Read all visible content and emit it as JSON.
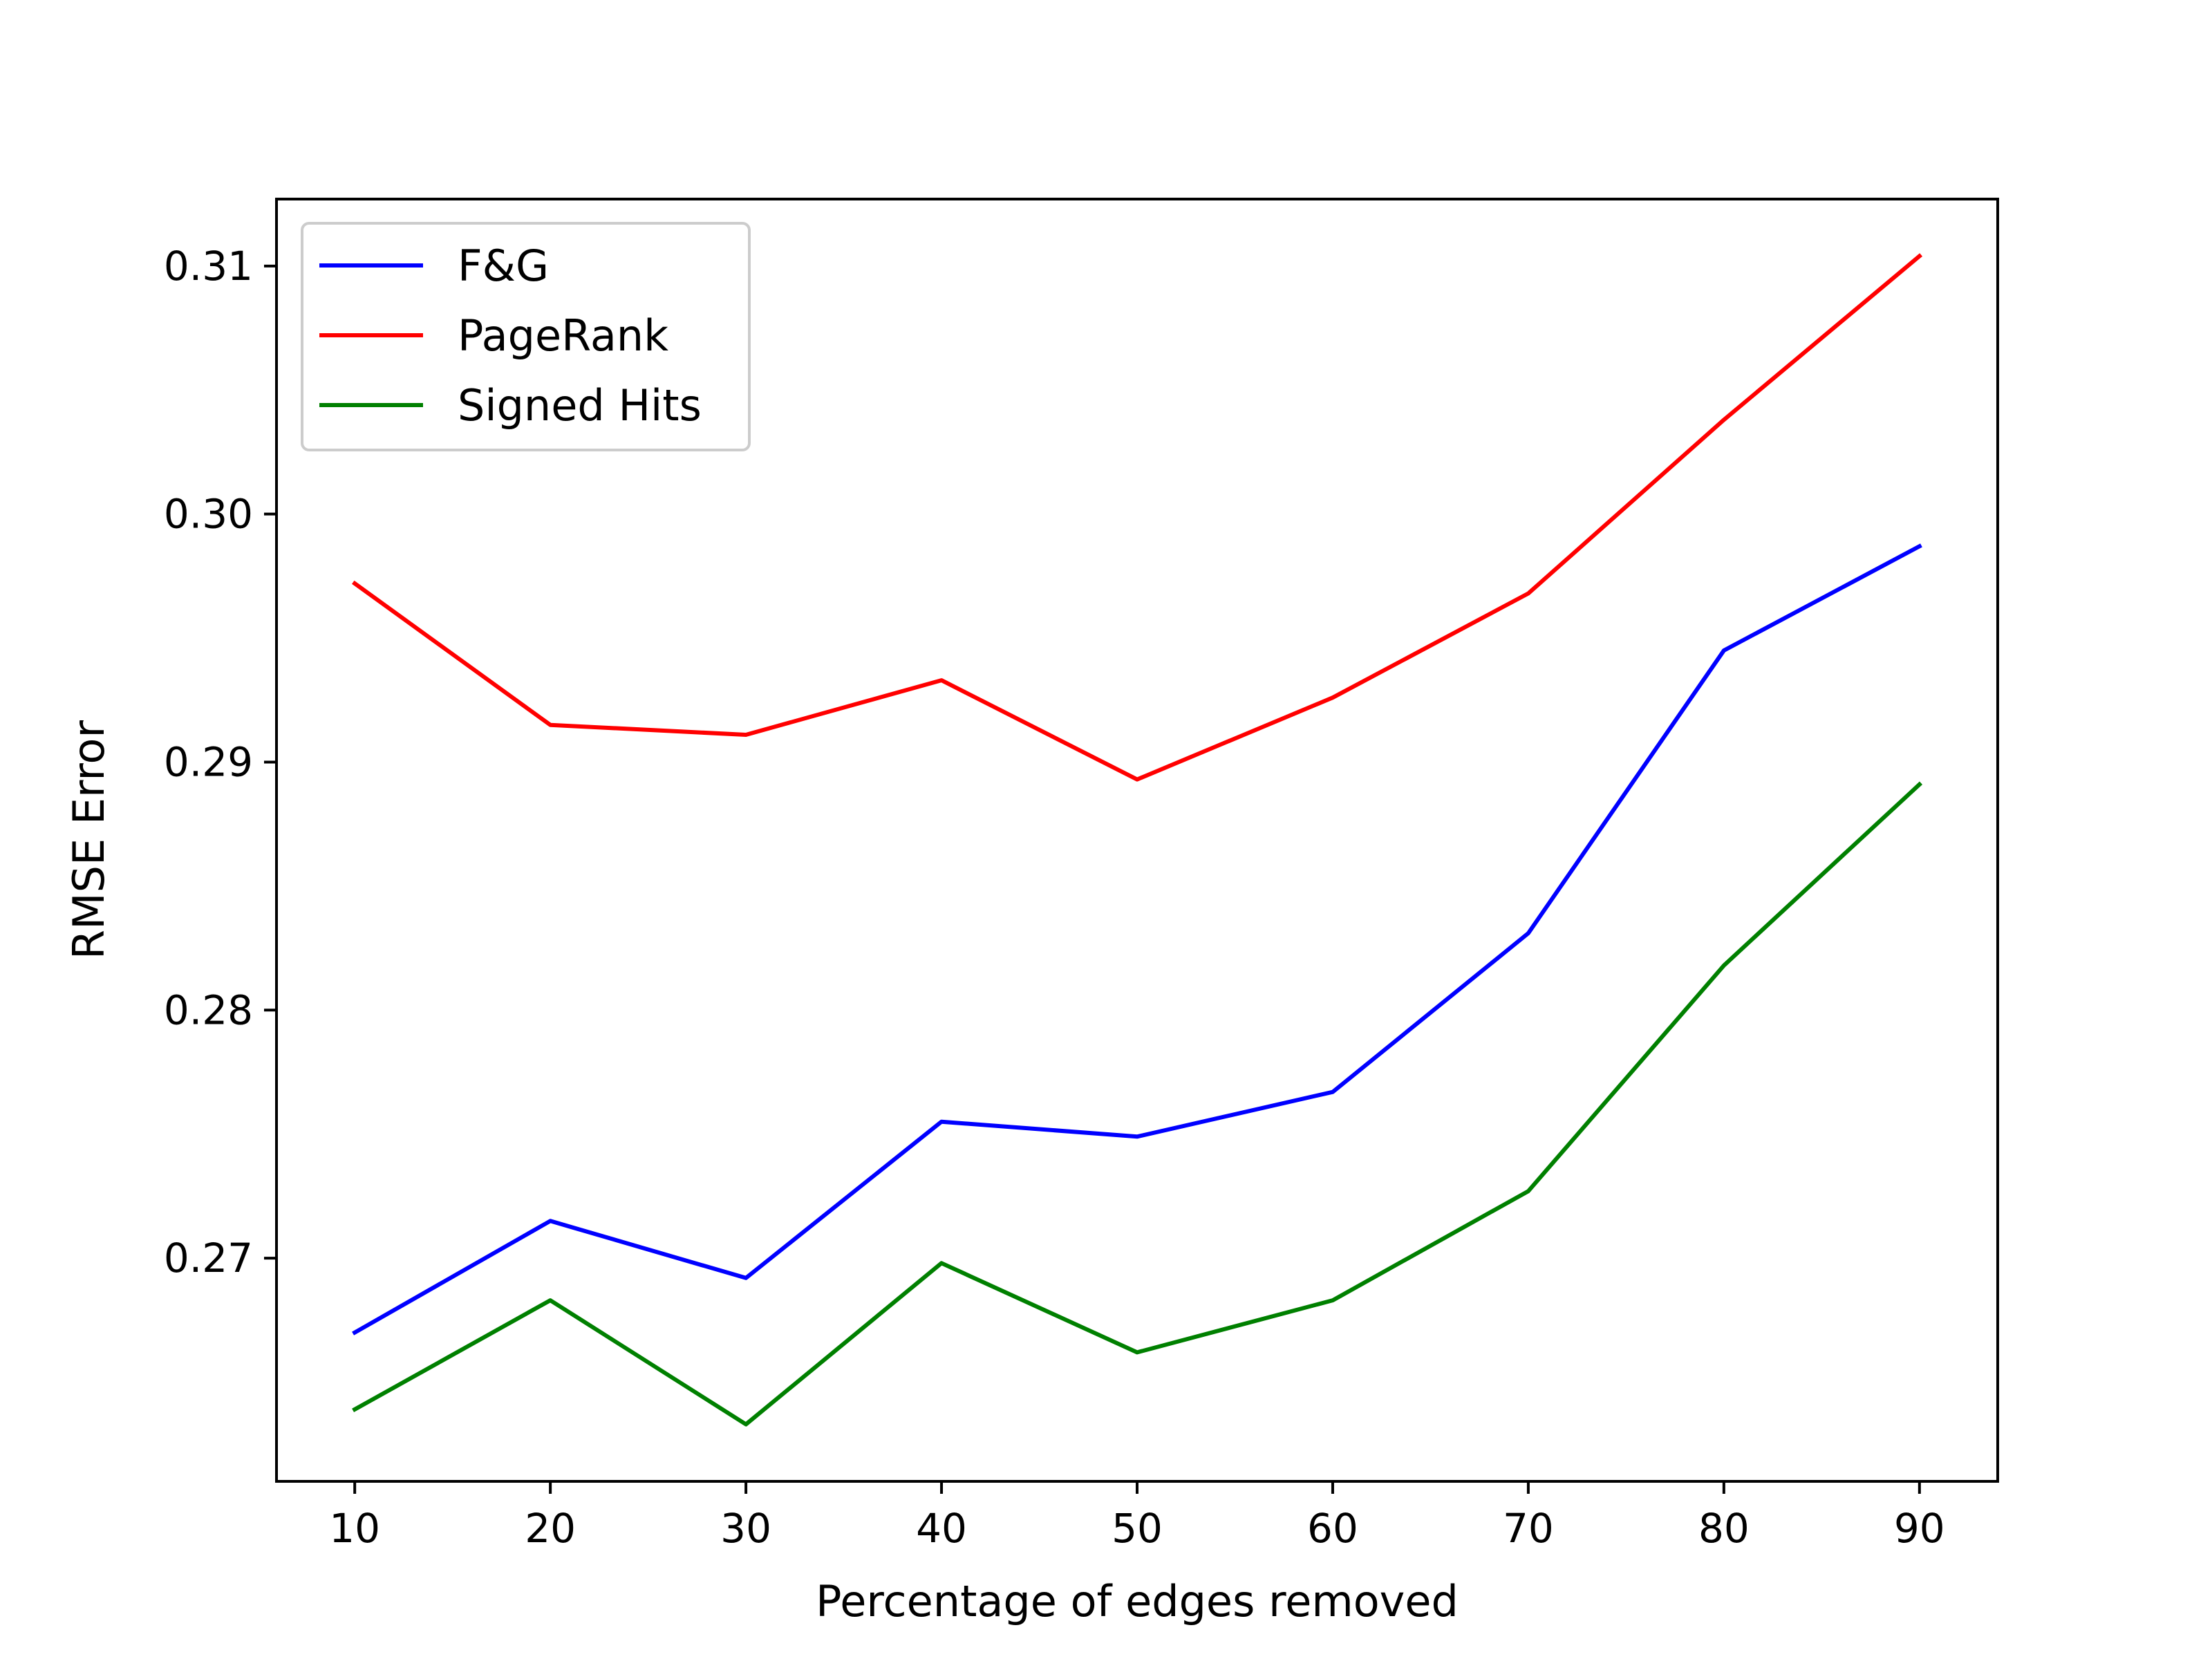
{
  "chart_data": {
    "type": "line",
    "title": "",
    "xlabel": "Percentage of edges removed",
    "ylabel": "RMSE Error",
    "x": [
      10,
      20,
      30,
      40,
      50,
      60,
      70,
      80,
      90
    ],
    "xticks": [
      "10",
      "20",
      "30",
      "40",
      "50",
      "60",
      "70",
      "80",
      "90"
    ],
    "yticks": [
      "0.27",
      "0.28",
      "0.29",
      "0.30",
      "0.31"
    ],
    "xlim": [
      6,
      94
    ],
    "ylim": [
      0.261,
      0.3127
    ],
    "grid": false,
    "legend_position": "upper-left",
    "series": [
      {
        "name": "F&G",
        "color": "#0000ff",
        "values": [
          0.267,
          0.2715,
          0.2692,
          0.2755,
          0.2749,
          0.2767,
          0.2831,
          0.2945,
          0.2987
        ]
      },
      {
        "name": "PageRank",
        "color": "#ff0000",
        "values": [
          0.2972,
          0.2915,
          0.2911,
          0.2933,
          0.2893,
          0.2926,
          0.2968,
          0.3038,
          0.3104
        ]
      },
      {
        "name": "Signed Hits",
        "color": "#008000",
        "values": [
          0.2639,
          0.2683,
          0.2633,
          0.2698,
          0.2662,
          0.2683,
          0.2727,
          0.2818,
          0.2891
        ]
      }
    ]
  }
}
